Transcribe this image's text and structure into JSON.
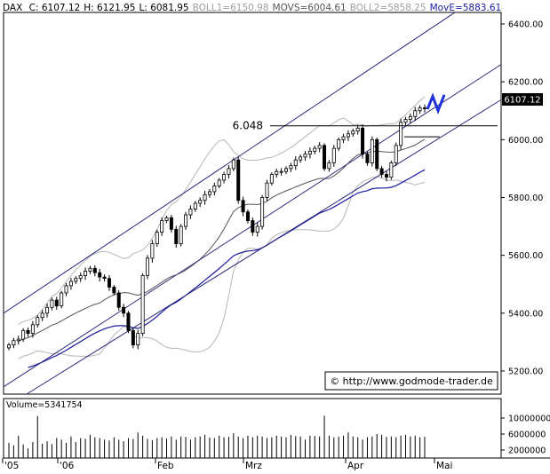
{
  "header": {
    "symbol": "DAX",
    "stats": [
      {
        "text": "C: 6107.12",
        "color": "#000000"
      },
      {
        "text": "H: 6121.95",
        "color": "#000000"
      },
      {
        "text": "L: 6081.95",
        "color": "#000000"
      },
      {
        "text": "BOLL1=6150.98",
        "color": "#a0a0a0"
      },
      {
        "text": "MOVS=6004.61",
        "color": "#555555"
      },
      {
        "text": "BOLL2=5858.25",
        "color": "#a0a0a0"
      },
      {
        "text": "MovE=5883.61",
        "color": "#1a1aa0"
      }
    ]
  },
  "chart_data": {
    "type": "candlestick",
    "x_tick_labels": [
      "'05",
      "'06",
      "Feb",
      "Mrz",
      "Apr",
      "Mai"
    ],
    "y_ticks": [
      "6400.00",
      "6200.00",
      "6000.00",
      "5800.00",
      "5600.00",
      "5400.00",
      "5200.00"
    ],
    "ylim": [
      5120,
      6440
    ],
    "last_price_label": "6107.12",
    "level_label": "6.048",
    "level_value": 6048,
    "watermark": "© http://www.godmode-trader.de",
    "close_values": [
      5290,
      5305,
      5310,
      5340,
      5330,
      5360,
      5385,
      5400,
      5420,
      5445,
      5425,
      5470,
      5495,
      5510,
      5520,
      5530,
      5545,
      5555,
      5540,
      5525,
      5520,
      5490,
      5470,
      5420,
      5400,
      5340,
      5290,
      5330,
      5530,
      5590,
      5640,
      5680,
      5720,
      5730,
      5690,
      5640,
      5700,
      5740,
      5760,
      5780,
      5790,
      5810,
      5820,
      5840,
      5860,
      5880,
      5900,
      5930,
      5790,
      5750,
      5720,
      5680,
      5700,
      5800,
      5850,
      5880,
      5890,
      5890,
      5900,
      5910,
      5930,
      5940,
      5950,
      5960,
      5970,
      5980,
      5900,
      5920,
      5970,
      6000,
      6010,
      6020,
      6030,
      6040,
      5950,
      5920,
      6000,
      5900,
      5880,
      5870,
      5920,
      5980,
      6060,
      6070,
      6080,
      6100,
      6110,
      6107
    ]
  },
  "volume_panel": {
    "title": "Volume=5341754",
    "y_ticks": [
      "10000000",
      "6000000",
      "2000000"
    ],
    "values": [
      3.8,
      3.2,
      5.6,
      3.4,
      2.4,
      4.0,
      10.5,
      3.6,
      4.2,
      3.5,
      5.0,
      4.6,
      3.8,
      5.4,
      4.0,
      5.0,
      4.8,
      5.8,
      5.2,
      5.0,
      4.6,
      4.4,
      5.2,
      4.6,
      4.2,
      5.0,
      4.8,
      6.4,
      5.6,
      4.8,
      4.5,
      5.0,
      5.2,
      4.9,
      5.4,
      4.6,
      5.4,
      5.3,
      4.6,
      5.2,
      5.4,
      5.8,
      5.1,
      5.0,
      5.6,
      5.2,
      5.3,
      6.2,
      5.4,
      5.0,
      5.6,
      5.2,
      5.6,
      5.4,
      5.0,
      5.2,
      5.6,
      5.4,
      5.2,
      5.8,
      5.5,
      5.4,
      4.6,
      5.6,
      5.5,
      5.4,
      10.6,
      5.6,
      5.2,
      5.4,
      5.6,
      6.4,
      5.4,
      5.2,
      4.6,
      5.2,
      5.4,
      6.0,
      5.8,
      5.3,
      5.4,
      5.2,
      5.6,
      5.8,
      5.4,
      5.6,
      5.2,
      5.3
    ]
  },
  "colors": {
    "candle_up": "#ffffff",
    "candle_down": "#000000",
    "channel_line": "#2a2a7a",
    "ema_line": "#1a1aa0",
    "bollinger": "#b5b5b5",
    "moving_avg": "#555555",
    "forecast": "#1e32d8"
  }
}
